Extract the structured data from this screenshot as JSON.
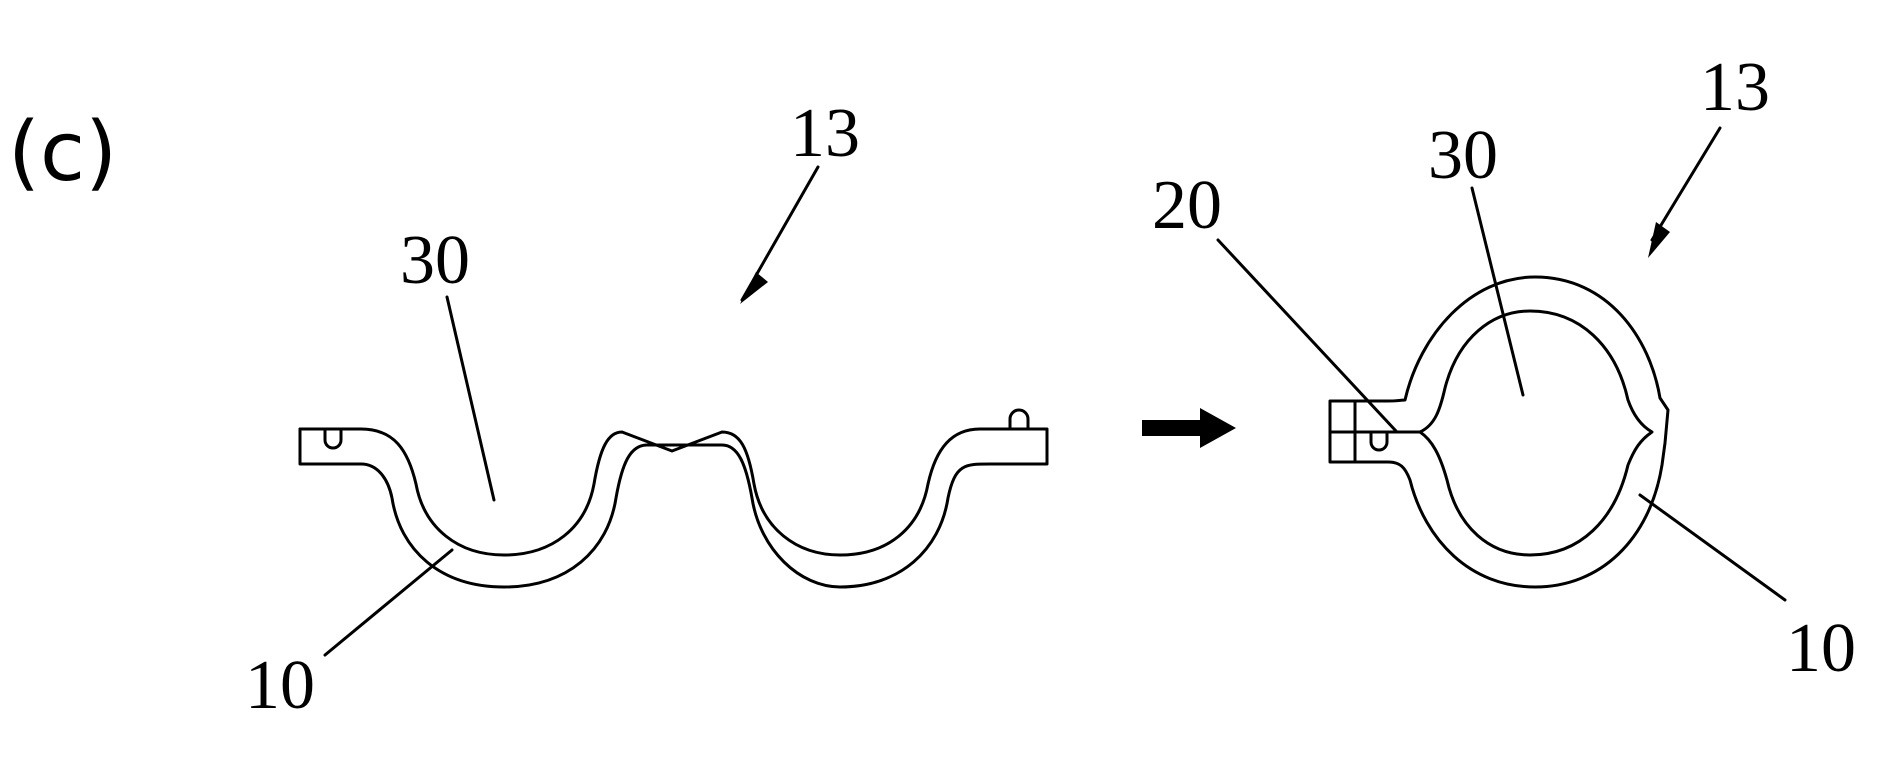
{
  "figure": {
    "panel_label": "(c)",
    "left_view": {
      "labels": {
        "assembly": "13",
        "inner_space": "30",
        "band": "10"
      }
    },
    "right_view": {
      "labels": {
        "assembly": "13",
        "inner_space": "30",
        "joint": "20",
        "band": "10"
      }
    },
    "transition_arrow": "right-arrow-icon"
  }
}
